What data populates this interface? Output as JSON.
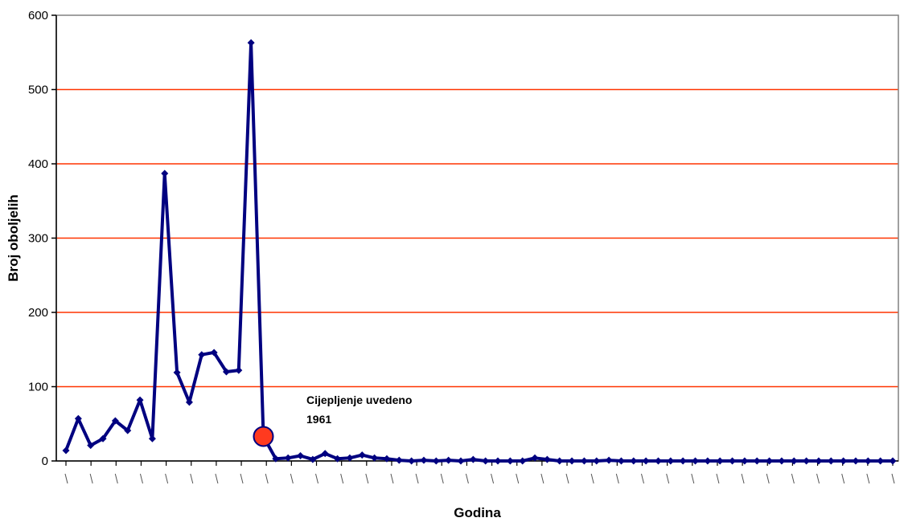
{
  "chart_data": {
    "type": "line",
    "xlabel": "Godina",
    "ylabel": "Broj oboljelih",
    "ylim": [
      0,
      600
    ],
    "yticks": [
      0,
      100,
      200,
      300,
      400,
      500,
      600
    ],
    "grid": "horizontal",
    "colors": {
      "line": "#000080",
      "grid": "#ff3300",
      "highlight": "#ff3a1f",
      "frame": "#808080"
    },
    "series": [
      {
        "values": [
          14,
          57,
          21,
          30,
          54,
          41,
          82,
          30,
          387,
          119,
          79,
          143,
          146,
          120,
          122,
          563,
          33,
          3,
          4,
          7,
          2,
          10,
          3,
          4,
          8,
          4,
          3,
          1,
          0,
          1,
          0,
          1,
          0,
          2,
          0,
          0,
          0,
          0,
          4,
          2,
          0,
          0,
          0,
          0,
          1,
          0,
          0,
          0,
          0,
          0,
          0,
          0,
          0,
          0,
          0,
          0,
          0,
          0,
          0,
          0,
          0,
          0,
          0,
          0,
          0,
          0,
          0,
          0
        ]
      }
    ],
    "highlight_index": 16,
    "annotation": {
      "line1": "Cijepljenje uvedeno",
      "line2": "1961"
    },
    "x_tick_count": 34
  }
}
